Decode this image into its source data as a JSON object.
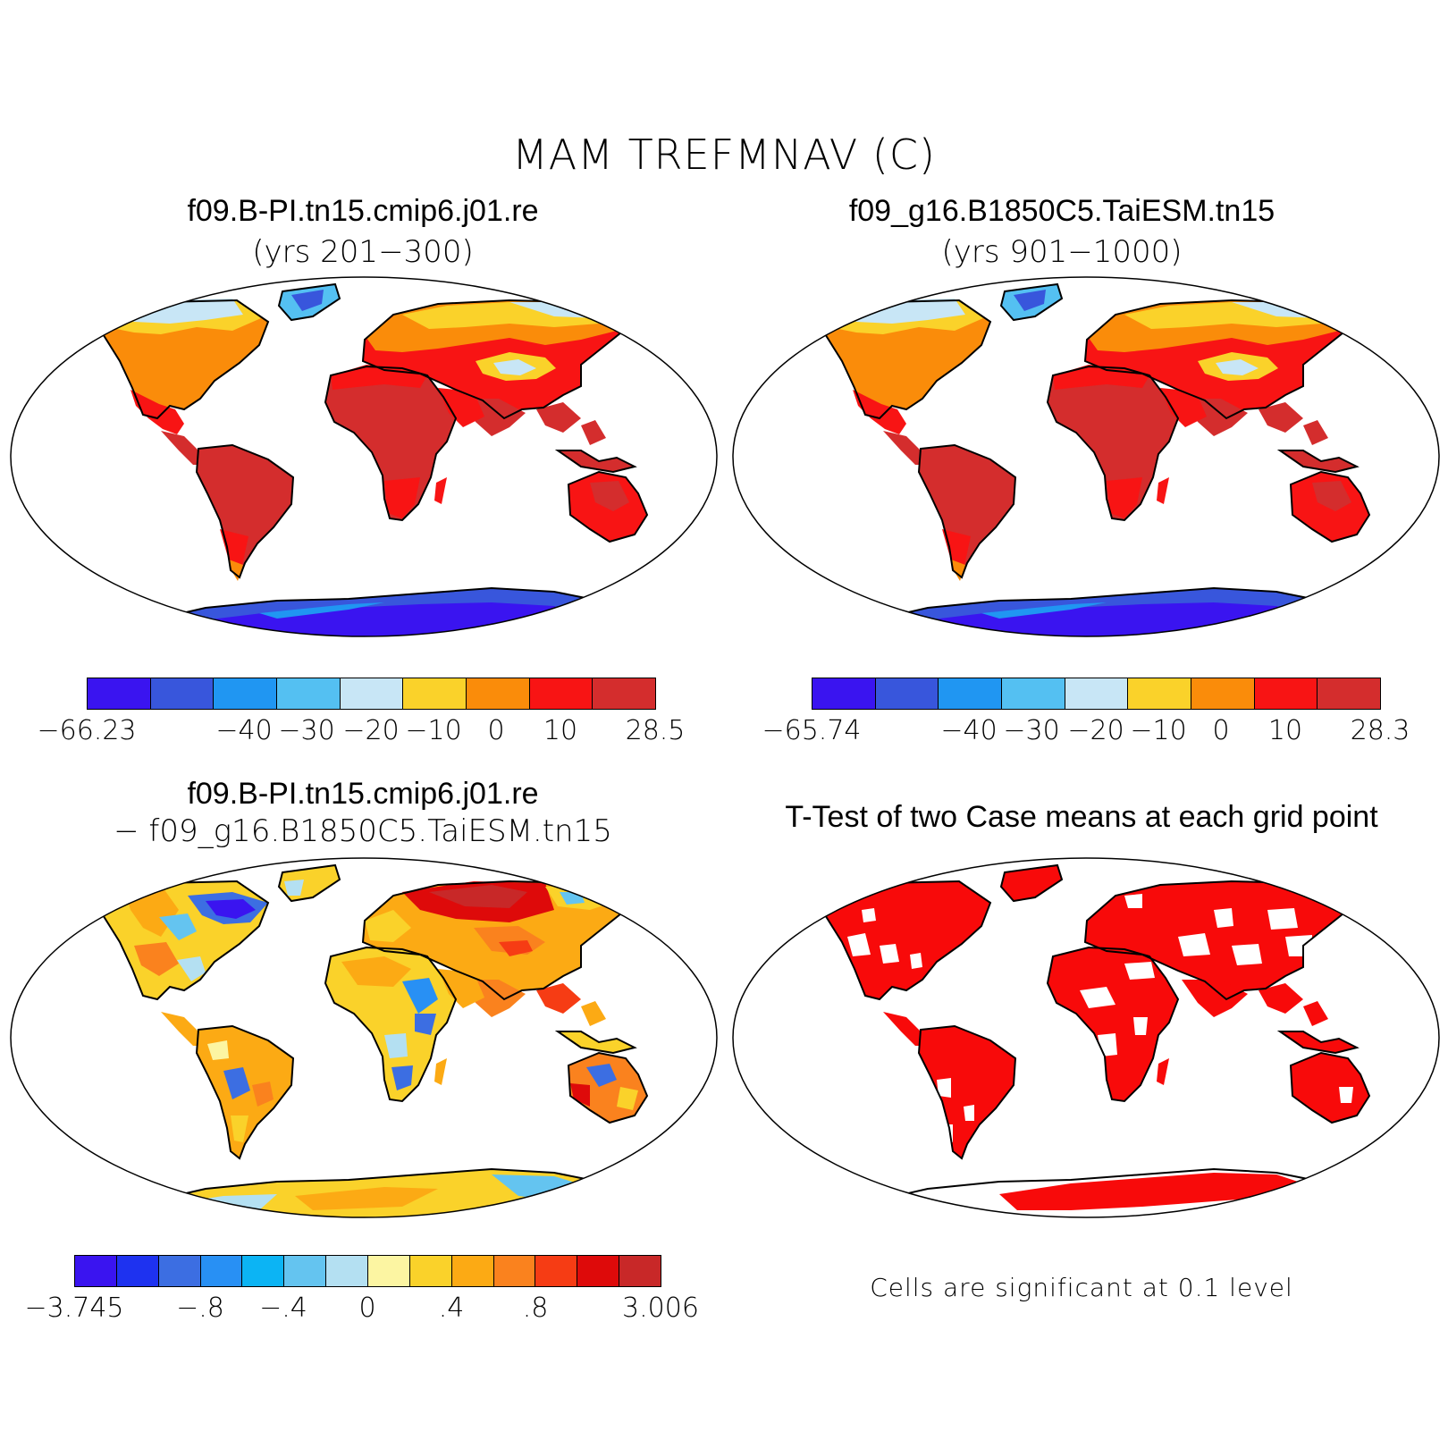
{
  "title": "MAM TREFMNAV (C)",
  "panels": {
    "top_left": {
      "title": "f09.B-PI.tn15.cmip6.j01.re",
      "subtitle": "(yrs 201−300)"
    },
    "top_right": {
      "title": "f09_g16.B1850C5.TaiESM.tn15",
      "subtitle": "(yrs 901−1000)"
    },
    "bottom_left": {
      "title": "f09.B-PI.tn15.cmip6.j01.re",
      "subtitle": "− f09_g16.B1850C5.TaiESM.tn15"
    },
    "bottom_right": {
      "title": "T-Test of two Case means at each grid point",
      "note": "Cells are significant at 0.1 level"
    }
  },
  "colorbars": {
    "abs_colors": [
      "#3a14f0",
      "#3856dc",
      "#2096f2",
      "#54c0f2",
      "#c8e6f6",
      "#fad22a",
      "#fa8c0a",
      "#f81414",
      "#d42d2d"
    ],
    "diff_colors": [
      "#3a14f0",
      "#1e32f0",
      "#3c6ee2",
      "#2890f4",
      "#0cb4f4",
      "#64c4f0",
      "#b4e0f2",
      "#fcf5a2",
      "#fad22a",
      "#fcaa14",
      "#fa821e",
      "#f63c14",
      "#de0a0a",
      "#c82828"
    ],
    "top_left_labels": [
      "−66.23",
      "−40",
      "−30",
      "−20",
      "−10",
      "0",
      "10",
      "28.5"
    ],
    "top_right_labels": [
      "−65.74",
      "−40",
      "−30",
      "−20",
      "−10",
      "0",
      "10",
      "28.3"
    ],
    "bottom_left_labels": [
      "−3.745",
      "−.8",
      "−.4",
      "0",
      ".4",
      ".8",
      "3.006"
    ]
  },
  "map_colors": {
    "land_warm": "#d42d2d",
    "land_red": "#f81414",
    "land_orange": "#fa8c0a",
    "land_yellow": "#fad22a",
    "ice_light": "#c8e6f6",
    "ice_mid": "#54c0f2",
    "ice_deep": "#3856dc",
    "ice_core": "#3a14f0",
    "signif": "#f80a0a"
  }
}
